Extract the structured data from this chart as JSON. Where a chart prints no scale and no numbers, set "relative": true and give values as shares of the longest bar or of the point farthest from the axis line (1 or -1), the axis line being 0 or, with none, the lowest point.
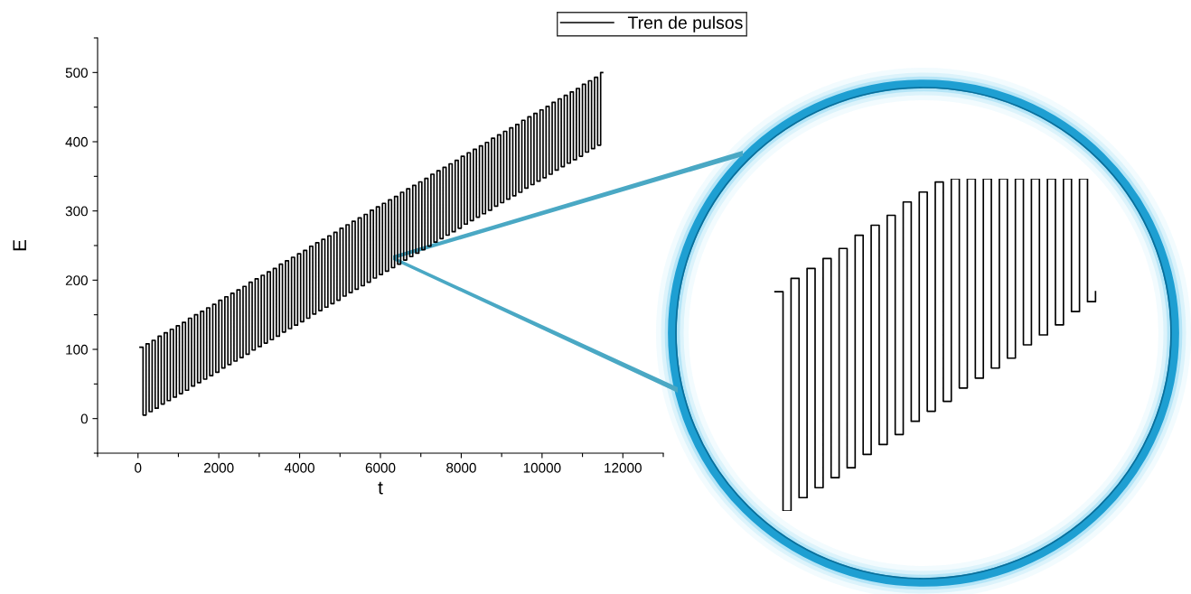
{
  "chart_data": [
    {
      "type": "step",
      "xlabel": "t",
      "ylabel": "E",
      "legend": "top",
      "grid": false,
      "xlim": [
        -1000,
        13000
      ],
      "ylim": [
        -50,
        550
      ],
      "xticks": [
        {
          "value": -1000,
          "label": null
        },
        0,
        {
          "value": 1000,
          "label": null
        },
        2000,
        {
          "value": 3000,
          "label": null
        },
        4000,
        {
          "value": 5000,
          "label": null
        },
        6000,
        {
          "value": 7000,
          "label": null
        },
        8000,
        {
          "value": 9000,
          "label": null
        },
        10000,
        {
          "value": 11000,
          "label": null
        },
        12000,
        {
          "value": 13000,
          "label": null
        }
      ],
      "yticks": [
        {
          "value": -50,
          "label": null
        },
        0,
        {
          "value": 50,
          "label": null
        },
        100,
        {
          "value": 150,
          "label": null
        },
        200,
        {
          "value": 250,
          "label": null
        },
        300,
        {
          "value": 350,
          "label": null
        },
        400,
        {
          "value": 450,
          "label": null
        },
        500,
        {
          "value": 550,
          "label": null
        }
      ],
      "x": [
        50,
        125,
        200,
        275,
        350,
        425,
        500,
        575,
        650,
        725,
        800,
        875,
        950,
        1025,
        1100,
        1175,
        1250,
        1325,
        1400,
        1475,
        1550,
        1625,
        1700,
        1775,
        1850,
        1925,
        2000,
        2075,
        2150,
        2225,
        2300,
        2375,
        2450,
        2525,
        2600,
        2675,
        2750,
        2825,
        2900,
        2975,
        3050,
        3125,
        3200,
        3275,
        3350,
        3425,
        3500,
        3575,
        3650,
        3725,
        3800,
        3875,
        3950,
        4025,
        4100,
        4175,
        4250,
        4325,
        4400,
        4475,
        4550,
        4625,
        4700,
        4775,
        4850,
        4925,
        5000,
        5075,
        5150,
        5225,
        5300,
        5375,
        5450,
        5525,
        5600,
        5675,
        5750,
        5825,
        5900,
        5975,
        6050,
        6125,
        6200,
        6275,
        6350,
        6425,
        6500,
        6575,
        6650,
        6725,
        6800,
        6875,
        6950,
        7025,
        7100,
        7175,
        7250,
        7325,
        7400,
        7475,
        7550,
        7625,
        7700,
        7775,
        7850,
        7925,
        8000,
        8075,
        8150,
        8225,
        8300,
        8375,
        8450,
        8525,
        8600,
        8675,
        8750,
        8825,
        8900,
        8975,
        9050,
        9125,
        9200,
        9275,
        9350,
        9425,
        9500,
        9575,
        9650,
        9725,
        9800,
        9875,
        9950,
        10025,
        10100,
        10175,
        10250,
        10325,
        10400,
        10475,
        10550,
        10625,
        10700,
        10775,
        10850,
        10925,
        11000,
        11075,
        11150,
        11225,
        11300,
        11375,
        11450,
        11500
      ],
      "series": [
        {
          "name": "Tren de pulsos",
          "color": "#000000",
          "values": [
            103,
            5,
            108,
            10,
            113,
            15,
            119,
            21,
            124,
            26,
            129,
            31,
            134,
            36,
            139,
            41,
            145,
            47,
            150,
            52,
            155,
            57,
            160,
            62,
            165,
            67,
            171,
            73,
            176,
            78,
            181,
            83,
            186,
            88,
            191,
            93,
            197,
            99,
            202,
            104,
            207,
            109,
            212,
            114,
            217,
            119,
            223,
            125,
            228,
            130,
            233,
            135,
            238,
            140,
            243,
            145,
            249,
            151,
            254,
            156,
            259,
            161,
            264,
            166,
            269,
            171,
            275,
            177,
            280,
            182,
            285,
            187,
            290,
            192,
            295,
            197,
            301,
            203,
            306,
            208,
            311,
            213,
            316,
            218,
            321,
            223,
            327,
            229,
            332,
            234,
            337,
            239,
            342,
            244,
            347,
            249,
            353,
            255,
            358,
            260,
            363,
            265,
            368,
            270,
            373,
            275,
            379,
            281,
            384,
            286,
            389,
            291,
            394,
            296,
            399,
            301,
            405,
            307,
            410,
            312,
            415,
            317,
            420,
            322,
            425,
            327,
            431,
            333,
            436,
            338,
            441,
            343,
            446,
            348,
            451,
            353,
            457,
            359,
            462,
            364,
            467,
            369,
            472,
            374,
            477,
            379,
            483,
            385,
            488,
            390,
            493,
            395,
            500,
            500
          ]
        }
      ]
    },
    {
      "type": "step",
      "relative": true,
      "categories": [
        null,
        null,
        null,
        null,
        null,
        null,
        null,
        null,
        null,
        null,
        null,
        null,
        null,
        null,
        null,
        null,
        null,
        null,
        null,
        null,
        null,
        null,
        null,
        null,
        null,
        null,
        null,
        null,
        null,
        null,
        null,
        null,
        null,
        null,
        null,
        null,
        null,
        null,
        null,
        null,
        null
      ],
      "series": [
        {
          "color": "#000000",
          "values": [
            0.66,
            0,
            0.7,
            0.04,
            0.73,
            0.07,
            0.76,
            0.1,
            0.79,
            0.13,
            0.83,
            0.17,
            0.86,
            0.2,
            0.89,
            0.23,
            0.93,
            0.27,
            0.96,
            0.3,
            0.99,
            0.33,
            1,
            0.37,
            1,
            0.4,
            1,
            0.43,
            1,
            0.46,
            1,
            0.5,
            1,
            0.53,
            1,
            0.56,
            1,
            0.6,
            1,
            0.63,
            0.66
          ]
        }
      ]
    }
  ]
}
